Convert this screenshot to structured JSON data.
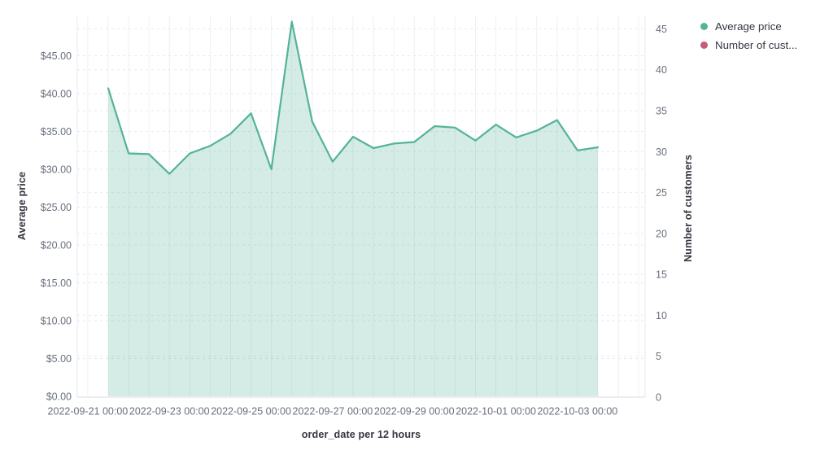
{
  "chart": {
    "y_axis_left_title": "Average price",
    "y_axis_right_title": "Number of customers",
    "x_axis_title": "order_date per 12 hours",
    "legend": {
      "position": "top-right",
      "items": [
        {
          "label": "Average price",
          "color": "#54b399"
        },
        {
          "label": "Number of cust...",
          "color": "#c45b77"
        }
      ]
    }
  },
  "chart_data": {
    "type": "area",
    "title": "",
    "xlabel": "order_date per 12 hours",
    "ylabel_left": "Average price",
    "ylabel_right": "Number of customers",
    "grid": true,
    "legend_position": "top-right",
    "x_tick_labels": [
      "2022-09-21 00:00",
      "2022-09-23 00:00",
      "2022-09-25 00:00",
      "2022-09-27 00:00",
      "2022-09-29 00:00",
      "2022-10-01 00:00",
      "2022-10-03 00:00"
    ],
    "y_axis_left": {
      "tick_values": [
        0,
        5,
        10,
        15,
        20,
        25,
        30,
        35,
        40,
        45
      ],
      "tick_labels": [
        "$0.00",
        "$5.00",
        "$10.00",
        "$15.00",
        "$20.00",
        "$25.00",
        "$30.00",
        "$35.00",
        "$40.00",
        "$45.00"
      ],
      "ylim": [
        0,
        50.3
      ]
    },
    "y_axis_right": {
      "tick_values": [
        0,
        5,
        10,
        15,
        20,
        25,
        30,
        35,
        40,
        45
      ],
      "tick_labels": [
        "0",
        "5",
        "10",
        "15",
        "20",
        "25",
        "30",
        "35",
        "40",
        "45"
      ],
      "ylim": [
        0,
        46.5
      ]
    },
    "series": [
      {
        "name": "Average price",
        "axis": "left",
        "color": "#54b399",
        "type": "area",
        "x": [
          "2022-09-21 12:00",
          "2022-09-22 00:00",
          "2022-09-22 12:00",
          "2022-09-23 00:00",
          "2022-09-23 12:00",
          "2022-09-24 00:00",
          "2022-09-24 12:00",
          "2022-09-25 00:00",
          "2022-09-25 12:00",
          "2022-09-26 00:00",
          "2022-09-26 12:00",
          "2022-09-27 00:00",
          "2022-09-27 12:00",
          "2022-09-28 00:00",
          "2022-09-28 12:00",
          "2022-09-29 00:00",
          "2022-09-29 12:00",
          "2022-09-30 00:00",
          "2022-09-30 12:00",
          "2022-10-01 00:00",
          "2022-10-01 12:00",
          "2022-10-02 00:00",
          "2022-10-02 12:00",
          "2022-10-03 00:00",
          "2022-10-03 12:00"
        ],
        "values": [
          40.7,
          32.1,
          32.0,
          29.4,
          32.1,
          33.1,
          34.7,
          37.4,
          30.0,
          49.5,
          36.3,
          31.0,
          34.3,
          32.8,
          33.4,
          33.6,
          35.7,
          35.5,
          33.8,
          35.9,
          34.2,
          35.1,
          36.5,
          32.5,
          32.9
        ]
      },
      {
        "name": "Number of cust...",
        "axis": "right",
        "color": "#c45b77",
        "type": "line",
        "x": [],
        "values": []
      }
    ]
  }
}
